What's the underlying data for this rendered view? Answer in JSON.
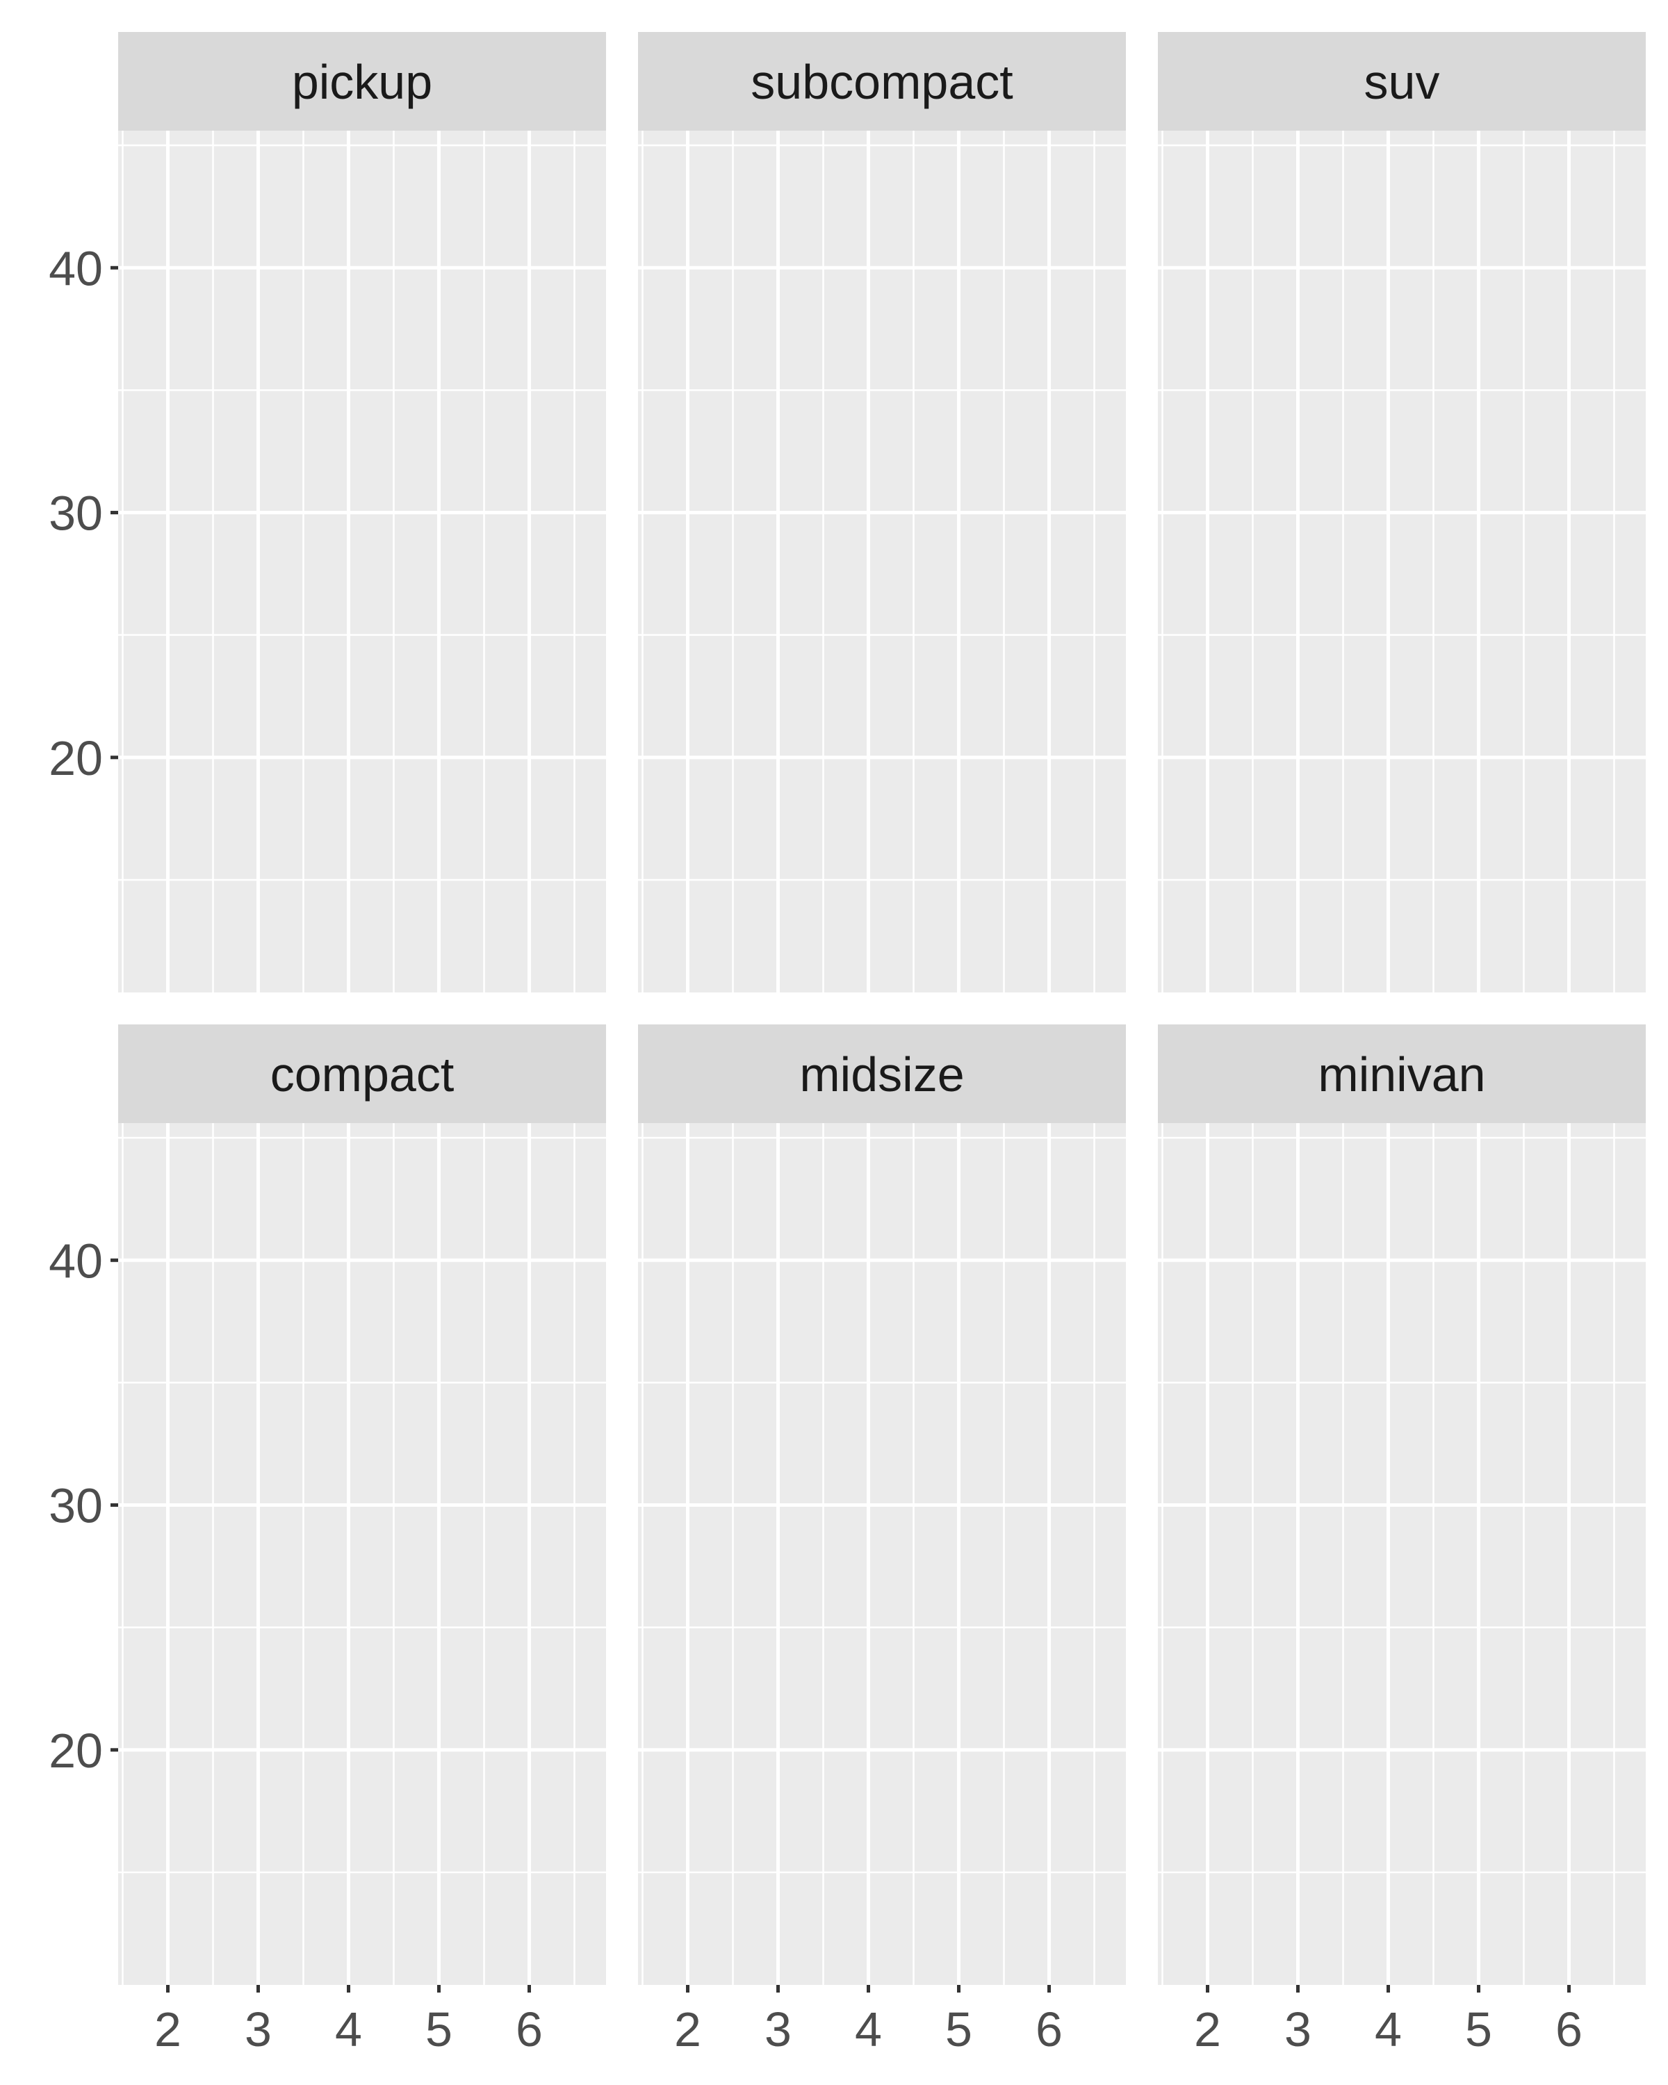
{
  "chart_data": {
    "type": "scatter",
    "layout": "facet_wrap",
    "ncol": 3,
    "nrow": 2,
    "free_x": true,
    "panels": [
      {
        "label": "pickup",
        "points": []
      },
      {
        "label": "subcompact",
        "points": []
      },
      {
        "label": "suv",
        "points": []
      },
      {
        "label": "compact",
        "points": []
      },
      {
        "label": "midsize",
        "points": []
      },
      {
        "label": "minivan",
        "points": []
      }
    ],
    "xlim": [
      1.45,
      6.85
    ],
    "x_major_ticks": [
      2,
      3,
      4,
      5,
      6
    ],
    "x_minor_ticks": [
      1.5,
      2.5,
      3.5,
      4.5,
      5.5,
      6.5
    ],
    "ylim": [
      10.4,
      45.6
    ],
    "y_major_ticks": [
      20,
      30,
      40
    ],
    "y_minor_ticks": [
      15,
      25,
      35,
      45
    ],
    "title": "",
    "xlabel": "",
    "ylabel": "",
    "grid": true,
    "legend": "none"
  },
  "colors": {
    "panel_background": "#ebebeb",
    "strip_background": "#d9d9d9",
    "grid_line": "#ffffff",
    "tick_mark": "#333333",
    "tick_label": "#4d4d4d",
    "strip_text": "#1a1a1a"
  }
}
